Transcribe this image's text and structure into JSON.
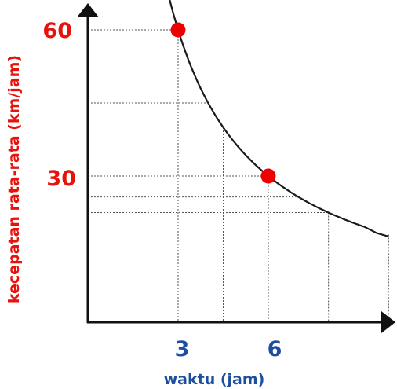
{
  "chart_data": {
    "type": "line",
    "title": "",
    "xlabel": "waktu (jam)",
    "ylabel": "kecepatan rata-rata (km/jam)",
    "x_ticks": [
      3,
      6
    ],
    "y_ticks": [
      30,
      60
    ],
    "series": [
      {
        "x": [
          3,
          4,
          5,
          6,
          7,
          8,
          9,
          10
        ],
        "y": [
          60,
          45,
          36,
          30,
          25.7,
          22.5,
          20,
          18
        ]
      }
    ],
    "highlighted_points": [
      {
        "x": 3,
        "y": 60
      },
      {
        "x": 6,
        "y": 30
      }
    ],
    "grid": true,
    "colors": {
      "axis": "#111111",
      "curve": "#1a1a1a",
      "grid": "#555555",
      "points": "#ee0000",
      "y_text": "#e8120c",
      "x_text": "#1d4f9e"
    }
  }
}
